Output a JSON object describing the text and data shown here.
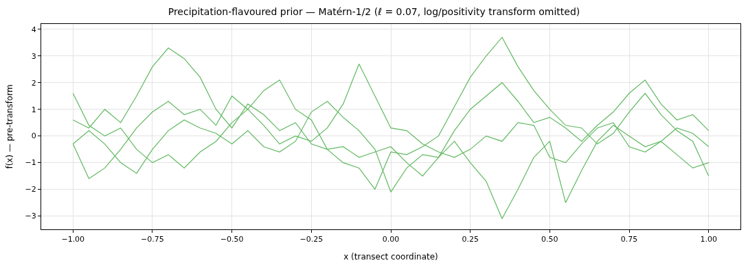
{
  "chart_data": {
    "type": "line",
    "title": "Precipitation-flavoured prior — Matérn-1/2 (ℓ = 0.07, log/positivity transform omitted)",
    "xlabel": "x (transect coordinate)",
    "ylabel": "f(x) — pre-transform",
    "x": [
      -1,
      -0.95,
      -0.9,
      -0.85,
      -0.8,
      -0.75,
      -0.7,
      -0.65,
      -0.6,
      -0.55,
      -0.5,
      -0.45,
      -0.4,
      -0.35,
      -0.3,
      -0.25,
      -0.2,
      -0.15,
      -0.1,
      -0.05,
      0,
      0.05,
      0.1,
      0.15,
      0.2,
      0.25,
      0.3,
      0.35,
      0.4,
      0.45,
      0.5,
      0.55,
      0.6,
      0.65,
      0.7,
      0.75,
      0.8,
      0.85,
      0.9,
      0.95,
      1
    ],
    "series": [
      {
        "color": "#60b860",
        "values": [
          0.6,
          0.3,
          1.0,
          0.5,
          1.5,
          2.6,
          3.3,
          2.9,
          2.2,
          1.0,
          0.3,
          1.2,
          0.8,
          0.2,
          0.5,
          -0.3,
          -0.5,
          -0.4,
          -0.8,
          -0.6,
          -0.4,
          -1.0,
          -1.5,
          -0.8,
          0.2,
          1.0,
          1.5,
          2.0,
          1.3,
          0.5,
          0.7,
          0.3,
          -0.2,
          0.4,
          0.9,
          1.6,
          2.1,
          1.2,
          0.6,
          0.8,
          0.2
        ]
      },
      {
        "color": "#60b860",
        "values": [
          -0.3,
          -1.6,
          -1.2,
          -0.5,
          0.3,
          0.9,
          1.3,
          0.8,
          1.0,
          0.4,
          1.5,
          1.0,
          0.4,
          -0.3,
          0.0,
          -0.2,
          0.3,
          1.2,
          2.7,
          1.5,
          0.3,
          0.2,
          -0.3,
          -0.6,
          -0.8,
          -0.5,
          0.0,
          -0.2,
          0.5,
          0.4,
          -0.8,
          -1.0,
          -0.3,
          0.3,
          0.5,
          -0.4,
          -0.6,
          -0.2,
          0.3,
          0.1,
          -0.4
        ]
      },
      {
        "color": "#60b860",
        "values": [
          1.6,
          0.4,
          0.0,
          0.3,
          -0.5,
          -1.0,
          -0.7,
          -1.2,
          -0.6,
          -0.2,
          0.5,
          1.0,
          1.7,
          2.1,
          1.0,
          0.6,
          -0.5,
          -1.0,
          -1.2,
          -2.0,
          -0.6,
          -0.7,
          -0.4,
          0.0,
          1.1,
          2.2,
          3.0,
          3.7,
          2.6,
          1.7,
          1.0,
          0.4,
          0.3,
          -0.3,
          0.1,
          0.9,
          1.6,
          0.8,
          0.2,
          -0.2,
          -1.5
        ]
      },
      {
        "color": "#60b860",
        "values": [
          -0.3,
          0.2,
          -0.3,
          -1.0,
          -1.4,
          -0.5,
          0.2,
          0.6,
          0.3,
          0.1,
          -0.3,
          0.2,
          -0.4,
          -0.6,
          -0.2,
          0.9,
          1.3,
          0.7,
          0.2,
          -0.5,
          -2.1,
          -1.2,
          -0.7,
          -0.8,
          -0.2,
          -1.0,
          -1.7,
          -3.1,
          -2.0,
          -0.8,
          -0.2,
          -2.5,
          -1.3,
          -0.2,
          0.4,
          0.0,
          -0.4,
          -0.2,
          -0.7,
          -1.2,
          -1.0
        ]
      }
    ],
    "xlim": [
      -1.1,
      1.1
    ],
    "xticks": [
      {
        "value": -1,
        "label": "−1.00"
      },
      {
        "value": -0.75,
        "label": "−0.75"
      },
      {
        "value": -0.5,
        "label": "−0.50"
      },
      {
        "value": -0.25,
        "label": "−0.25"
      },
      {
        "value": 0,
        "label": "0.00"
      },
      {
        "value": 0.25,
        "label": "0.25"
      },
      {
        "value": 0.5,
        "label": "0.50"
      },
      {
        "value": 0.75,
        "label": "0.75"
      },
      {
        "value": 1,
        "label": "1.00"
      }
    ],
    "ylim": [
      -3.5,
      4.2
    ],
    "yticks": [
      {
        "value": -3,
        "label": "−3"
      },
      {
        "value": -2,
        "label": "−2"
      },
      {
        "value": -1,
        "label": "−1"
      },
      0,
      1,
      2,
      3,
      4
    ],
    "grid": true,
    "line_style": "solid"
  }
}
